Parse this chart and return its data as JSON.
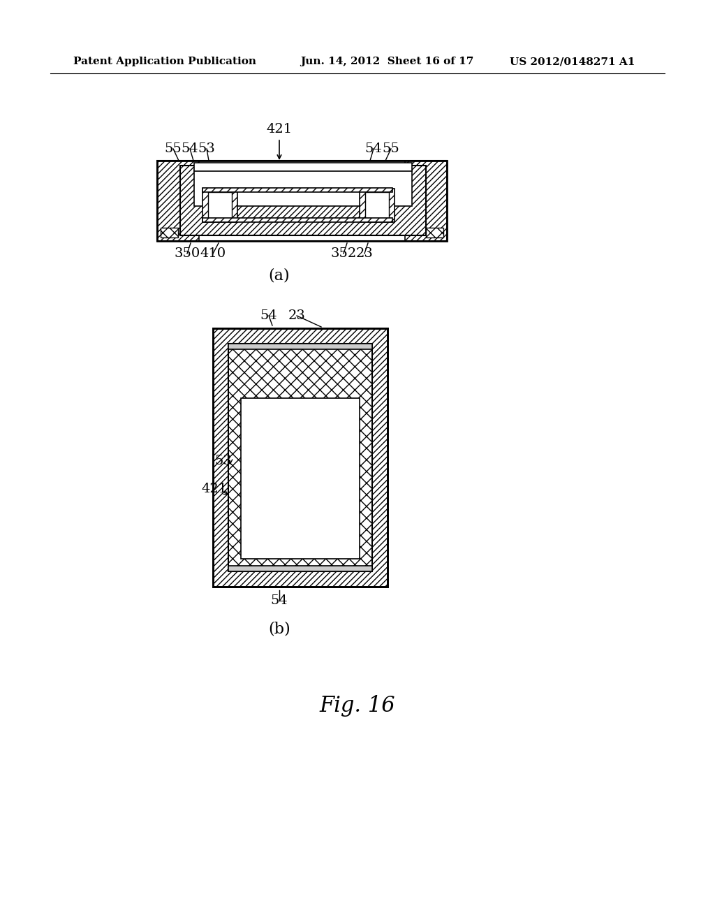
{
  "header_left": "Patent Application Publication",
  "header_center": "Jun. 14, 2012  Sheet 16 of 17",
  "header_right": "US 2012/0148271 A1",
  "fig_label": "Fig. 16",
  "background_color": "#ffffff",
  "line_color": "#000000",
  "hatch_color": "#000000",
  "fig_a_label": "(a)",
  "fig_b_label": "(b)"
}
